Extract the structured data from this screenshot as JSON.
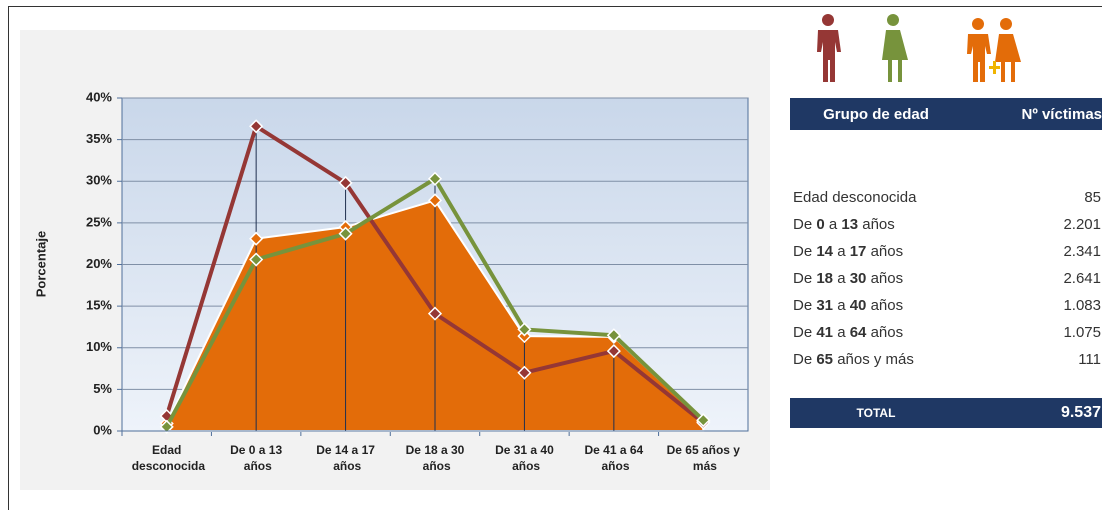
{
  "chart_data": {
    "type": "area-line",
    "y_label": "Porcentaje",
    "categories": [
      "Edad desconocida",
      "De 0 a 13 años",
      "De 14 a 17 años",
      "De 18 a 30 años",
      "De 31 a 40 años",
      "De 41 a 64 años",
      "De 65 años y más"
    ],
    "series": [
      {
        "kind": "area",
        "color": "#E36C09",
        "values": [
          0.9,
          23.1,
          24.5,
          27.7,
          11.4,
          11.3,
          1.2
        ]
      },
      {
        "kind": "line",
        "color": "#953735",
        "values": [
          1.8,
          36.6,
          29.8,
          14.1,
          7.0,
          9.6,
          1.0
        ]
      },
      {
        "kind": "line",
        "color": "#77933C",
        "values": [
          0.5,
          20.6,
          23.7,
          30.3,
          12.2,
          11.5,
          1.3
        ]
      }
    ],
    "ylim": [
      0,
      40
    ],
    "yticks": [
      {
        "value": 0,
        "label": "0%"
      },
      {
        "value": 5,
        "label": "5%"
      },
      {
        "value": 10,
        "label": "10%"
      },
      {
        "value": 15,
        "label": "15%"
      },
      {
        "value": 20,
        "label": "20%"
      },
      {
        "value": 25,
        "label": "25%"
      },
      {
        "value": 30,
        "label": "30%"
      },
      {
        "value": 35,
        "label": "35%"
      },
      {
        "value": 40,
        "label": "40%"
      }
    ],
    "grid": true
  },
  "table": {
    "header": [
      "Grupo de edad",
      "Nº víctimas"
    ],
    "rows": [
      [
        "Edad desconocida",
        "85"
      ],
      [
        "De 0 a 13 años",
        "2.201"
      ],
      [
        "De 14 a 17 años",
        "2.341"
      ],
      [
        "De 18 a 30 años",
        "2.641"
      ],
      [
        "De 31 a 40 años",
        "1.083"
      ],
      [
        "De 41 a 64 años",
        "1.075"
      ],
      [
        "De 65 años y más",
        "111"
      ]
    ],
    "total": [
      "TOTAL",
      "9.537"
    ]
  }
}
